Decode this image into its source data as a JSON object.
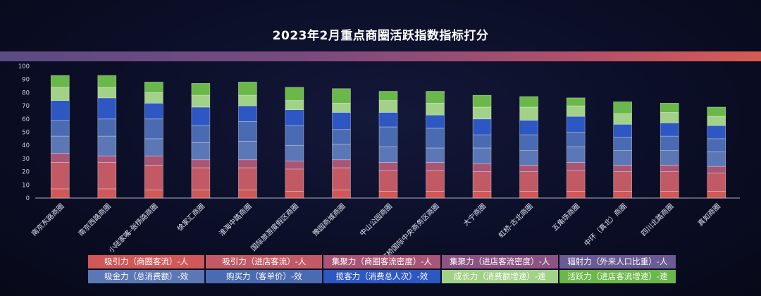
{
  "chart_data": {
    "type": "bar",
    "stacked": true,
    "title": "2023年2月重点商圈活跃指数指标打分",
    "ylim": [
      0,
      100
    ],
    "yticks": [
      0,
      10,
      20,
      30,
      40,
      50,
      60,
      70,
      80,
      90,
      100
    ],
    "categories": [
      "南京东路商圈",
      "南京西路商圈",
      "小陆家嘴-张杨路商圈",
      "徐家汇商圈",
      "淮海中路商圈",
      "国际旅游度假区商圈",
      "豫园商城商圈",
      "中山公园商圈",
      "虹桥国际中央商务区商圈",
      "大宁商圈",
      "虹桥-古北商圈",
      "五角场商圈",
      "中环（真北）商圈",
      "四川北路商圈",
      "真如商圈"
    ],
    "series": [
      {
        "name": "吸引力（商圈客流）-人",
        "color": "#cf5858",
        "values": [
          7,
          7,
          6,
          6,
          6,
          5,
          6,
          5,
          5,
          5,
          5,
          5,
          5,
          5,
          5
        ]
      },
      {
        "name": "吸引力（进店客流）-人",
        "color": "#c25a66",
        "values": [
          20,
          20,
          19,
          17,
          17,
          17,
          17,
          16,
          16,
          15,
          15,
          16,
          15,
          15,
          14
        ]
      },
      {
        "name": "集聚力（商圈客流密度）-人",
        "color": "#a95676",
        "values": [
          7,
          5,
          7,
          6,
          6,
          6,
          6,
          6,
          6,
          6,
          5,
          6,
          5,
          5,
          5
        ]
      },
      {
        "name": "集聚力（进店客流密度）-人",
        "color": "#8c5383",
        "values": [
          0,
          0,
          0,
          0,
          0,
          0,
          0,
          0,
          0,
          0,
          0,
          0,
          0,
          0,
          0
        ]
      },
      {
        "name": "辐射力（外来人口比重）-人",
        "color": "#6b5a93",
        "values": [
          0,
          0,
          0,
          0,
          0,
          0,
          0,
          0,
          0,
          0,
          0,
          0,
          0,
          0,
          0
        ]
      },
      {
        "name": "吸金力（总消费额）-效",
        "color": "#5b77b6",
        "values": [
          13,
          15,
          13,
          13,
          14,
          12,
          12,
          12,
          11,
          12,
          11,
          12,
          11,
          11,
          11
        ]
      },
      {
        "name": "购买力（客单价）-效",
        "color": "#4a6bb2",
        "values": [
          12,
          13,
          15,
          13,
          15,
          15,
          11,
          15,
          15,
          10,
          12,
          11,
          10,
          11,
          10
        ]
      },
      {
        "name": "揽客力（消费总人次）-效",
        "color": "#2d57c2",
        "values": [
          15,
          16,
          12,
          14,
          12,
          12,
          13,
          11,
          10,
          12,
          11,
          12,
          10,
          10,
          10
        ]
      },
      {
        "name": "成长力（消费额增速）-速",
        "color": "#a2d288",
        "values": [
          10,
          8,
          8,
          9,
          8,
          7,
          7,
          9,
          9,
          9,
          10,
          8,
          8,
          8,
          7
        ]
      },
      {
        "name": "活跃力（进店客流增速）-速",
        "color": "#6bb84a",
        "values": [
          9,
          9,
          8,
          9,
          10,
          10,
          11,
          7,
          9,
          9,
          8,
          6,
          9,
          7,
          7
        ]
      }
    ],
    "totals": [
      93,
      93,
      88,
      87,
      88,
      84,
      83,
      81,
      81,
      78,
      77,
      76,
      73,
      72,
      69
    ]
  }
}
